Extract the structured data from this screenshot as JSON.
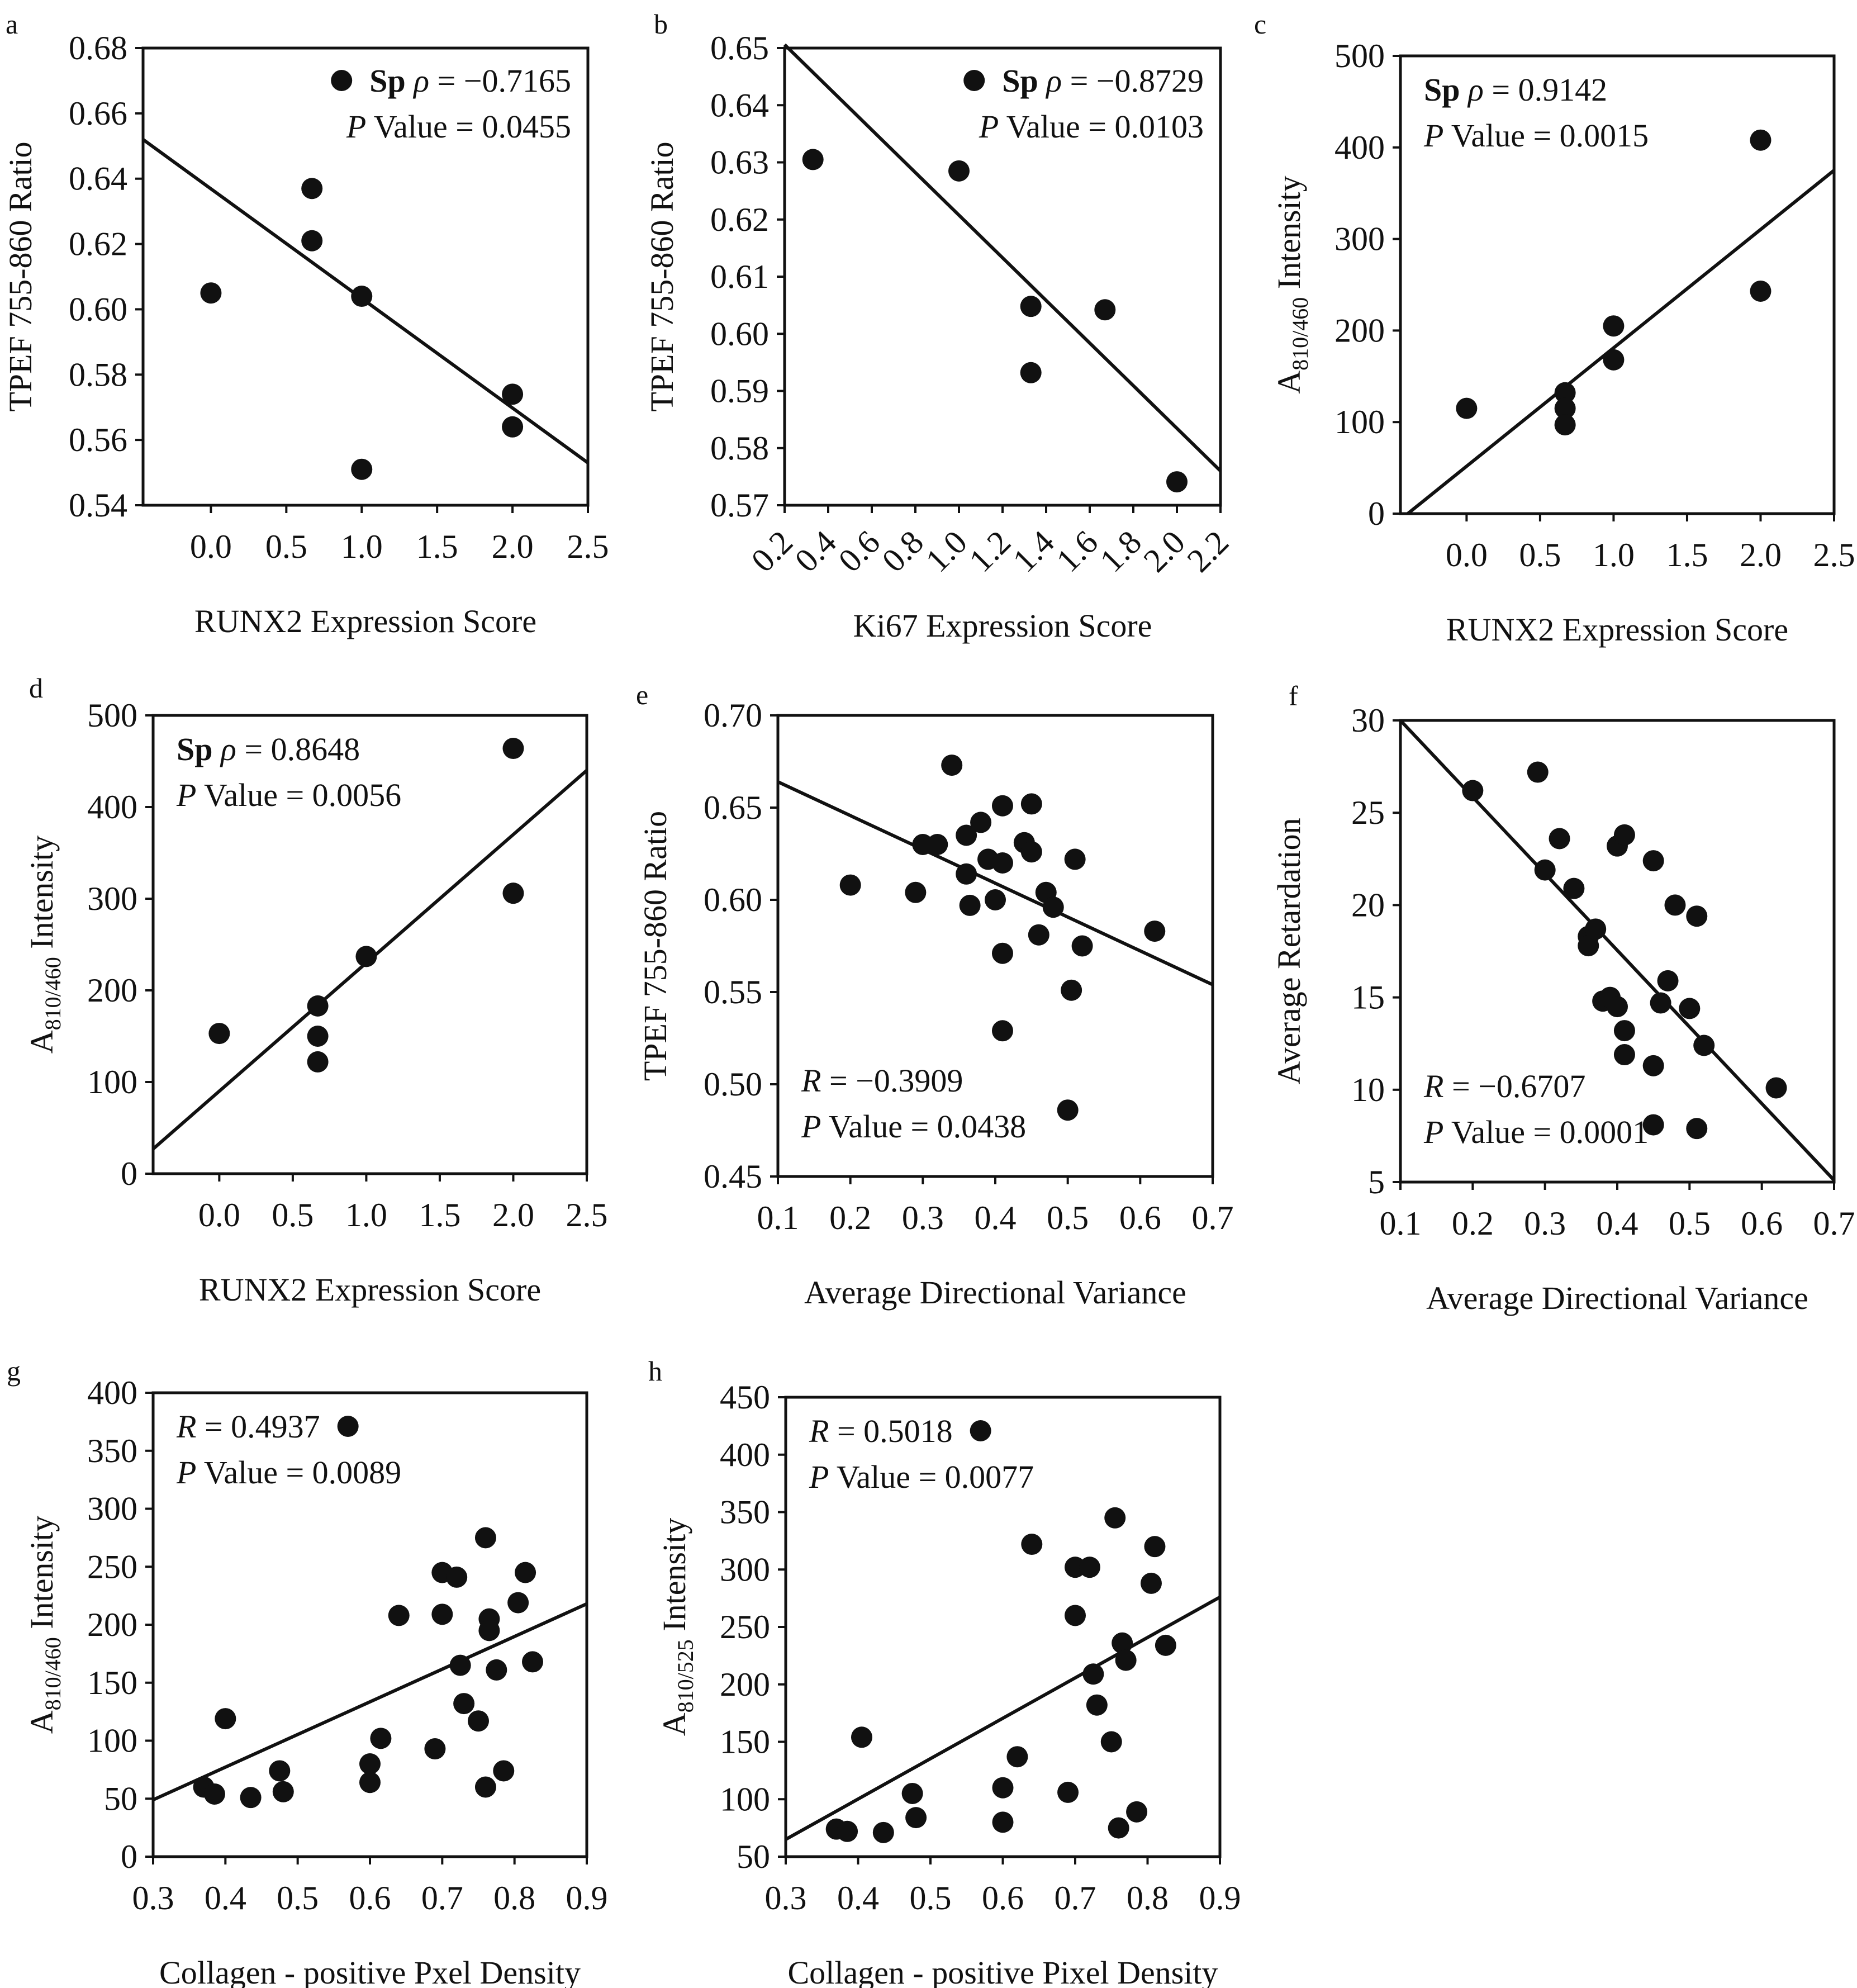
{
  "colors": {
    "ink": "#111111",
    "marker": "#111111",
    "background": "#ffffff"
  },
  "chart_data": [
    {
      "panel": "a",
      "type": "scatter",
      "xlabel": "RUNX2 Expression Score",
      "ylabel": "TPEF 755-860 Ratio",
      "xlim": [
        -0.45,
        2.5
      ],
      "ylim": [
        0.54,
        0.68
      ],
      "xticks": [
        0.0,
        0.5,
        1.0,
        1.5,
        2.0,
        2.5
      ],
      "xtick_labels": [
        "0.0",
        "0.5",
        "1.0",
        "1.5",
        "2.0",
        "2.5"
      ],
      "yticks": [
        0.54,
        0.56,
        0.58,
        0.6,
        0.62,
        0.64,
        0.66,
        0.68
      ],
      "ytick_labels": [
        "0.54",
        "0.56",
        "0.58",
        "0.60",
        "0.62",
        "0.64",
        "0.66",
        "0.68"
      ],
      "x": [
        0.0,
        0.67,
        0.67,
        1.0,
        1.0,
        2.0,
        2.0
      ],
      "y": [
        0.605,
        0.637,
        0.621,
        0.604,
        0.551,
        0.574,
        0.564
      ],
      "fit_line": {
        "x": [
          -0.45,
          2.5
        ],
        "y": [
          0.652,
          0.553
        ]
      },
      "legend": "top-right",
      "annotation": {
        "lines": [
          {
            "segments": [
              {
                "text": "Sp",
                "bold": true
              },
              {
                "text": " ρ",
                "italic": true
              },
              {
                "text": " = −0.7165"
              }
            ],
            "marker": true
          },
          {
            "segments": [
              {
                "text": "P",
                "italic": true
              },
              {
                "text": "  Value = 0.0455"
              }
            ]
          }
        ]
      }
    },
    {
      "panel": "b",
      "type": "scatter",
      "xlabel": "Ki67 Expression Score",
      "ylabel": "TPEF 755-860 Ratio",
      "xlim": [
        0.2,
        2.2
      ],
      "ylim": [
        0.57,
        0.65
      ],
      "xticks": [
        0.2,
        0.4,
        0.6,
        0.8,
        1.0,
        1.2,
        1.4,
        1.6,
        1.8,
        2.0,
        2.2
      ],
      "xtick_labels": [
        "0.2",
        "0.4",
        "0.6",
        "0.8",
        "1.0",
        "1.2",
        "1.4",
        "1.6",
        "1.8",
        "2.0",
        "2.2"
      ],
      "xtick_rotation": -45,
      "yticks": [
        0.57,
        0.58,
        0.59,
        0.6,
        0.61,
        0.62,
        0.63,
        0.64,
        0.65
      ],
      "ytick_labels": [
        "0.57",
        "0.58",
        "0.59",
        "0.60",
        "0.61",
        "0.62",
        "0.63",
        "0.64",
        "0.65"
      ],
      "x": [
        0.33,
        1.0,
        1.33,
        1.33,
        1.67,
        2.0
      ],
      "y": [
        0.6305,
        0.6285,
        0.6048,
        0.5932,
        0.6042,
        0.5741
      ],
      "fit_line": {
        "x": [
          0.2,
          2.2
        ],
        "y": [
          0.6506,
          0.576
        ]
      },
      "legend": "top-right",
      "annotation": {
        "lines": [
          {
            "segments": [
              {
                "text": "Sp",
                "bold": true
              },
              {
                "text": " ρ",
                "italic": true
              },
              {
                "text": " = −0.8729"
              }
            ],
            "marker": true
          },
          {
            "segments": [
              {
                "text": "P",
                "italic": true
              },
              {
                "text": "  Value = 0.0103"
              }
            ]
          }
        ]
      }
    },
    {
      "panel": "c",
      "type": "scatter",
      "xlabel": "RUNX2 Expression Score",
      "ylabel": {
        "base": "A",
        "sub": "810/460",
        "rest": " Intensity"
      },
      "xlim": [
        -0.45,
        2.5
      ],
      "ylim": [
        0,
        500
      ],
      "xticks": [
        0.0,
        0.5,
        1.0,
        1.5,
        2.0,
        2.5
      ],
      "xtick_labels": [
        "0.0",
        "0.5",
        "1.0",
        "1.5",
        "2.0",
        "2.5"
      ],
      "yticks": [
        0,
        100,
        200,
        300,
        400,
        500
      ],
      "ytick_labels": [
        "0",
        "100",
        "200",
        "300",
        "400",
        "500"
      ],
      "x": [
        0.0,
        0.67,
        0.67,
        0.67,
        1.0,
        1.0,
        2.0,
        2.0
      ],
      "y": [
        115,
        132,
        115,
        97,
        205,
        168,
        408,
        243
      ],
      "fit_line": {
        "x": [
          -0.4,
          2.5
        ],
        "y": [
          0,
          375
        ]
      },
      "legend": "top-left",
      "annotation": {
        "lines": [
          {
            "segments": [
              {
                "text": "Sp",
                "bold": true
              },
              {
                "text": " ρ",
                "italic": true
              },
              {
                "text": " = 0.9142"
              }
            ]
          },
          {
            "segments": [
              {
                "text": "P",
                "italic": true
              },
              {
                "text": " Value = 0.0015"
              }
            ]
          }
        ]
      }
    },
    {
      "panel": "d",
      "type": "scatter",
      "xlabel": "RUNX2 Expression Score",
      "ylabel": {
        "base": "A",
        "sub": "810/460",
        "rest": " Intensity"
      },
      "xlim": [
        -0.45,
        2.5
      ],
      "ylim": [
        0,
        500
      ],
      "xticks": [
        0.0,
        0.5,
        1.0,
        1.5,
        2.0,
        2.5
      ],
      "xtick_labels": [
        "0.0",
        "0.5",
        "1.0",
        "1.5",
        "2.0",
        "2.5"
      ],
      "yticks": [
        0,
        100,
        200,
        300,
        400,
        500
      ],
      "ytick_labels": [
        "0",
        "100",
        "200",
        "300",
        "400",
        "500"
      ],
      "x": [
        0.0,
        0.67,
        0.67,
        0.67,
        1.0,
        2.0,
        2.0
      ],
      "y": [
        153,
        183,
        150,
        122,
        237,
        464,
        306
      ],
      "fit_line": {
        "x": [
          -0.45,
          2.5
        ],
        "y": [
          27,
          440
        ]
      },
      "legend": "top-left",
      "annotation": {
        "lines": [
          {
            "segments": [
              {
                "text": "Sp",
                "bold": true
              },
              {
                "text": " ρ",
                "italic": true
              },
              {
                "text": " = 0.8648"
              }
            ]
          },
          {
            "segments": [
              {
                "text": "P",
                "italic": true
              },
              {
                "text": " Value = 0.0056"
              }
            ]
          }
        ]
      }
    },
    {
      "panel": "e",
      "type": "scatter",
      "xlabel": "Average Directional Variance",
      "ylabel": "TPEF 755-860 Ratio",
      "xlim": [
        0.1,
        0.7
      ],
      "ylim": [
        0.45,
        0.7
      ],
      "xticks": [
        0.1,
        0.2,
        0.3,
        0.4,
        0.5,
        0.6,
        0.7
      ],
      "xtick_labels": [
        "0.1",
        "0.2",
        "0.3",
        "0.4",
        "0.5",
        "0.6",
        "0.7"
      ],
      "yticks": [
        0.45,
        0.5,
        0.55,
        0.6,
        0.65,
        0.7
      ],
      "ytick_labels": [
        "0.45",
        "0.50",
        "0.55",
        "0.60",
        "0.65",
        "0.70"
      ],
      "x": [
        0.2,
        0.29,
        0.3,
        0.32,
        0.34,
        0.36,
        0.36,
        0.365,
        0.38,
        0.39,
        0.4,
        0.41,
        0.41,
        0.41,
        0.41,
        0.44,
        0.45,
        0.45,
        0.46,
        0.47,
        0.48,
        0.5,
        0.505,
        0.51,
        0.52,
        0.62
      ],
      "y": [
        0.608,
        0.604,
        0.63,
        0.63,
        0.673,
        0.635,
        0.614,
        0.597,
        0.642,
        0.622,
        0.6,
        0.651,
        0.62,
        0.571,
        0.529,
        0.631,
        0.652,
        0.626,
        0.581,
        0.604,
        0.596,
        0.486,
        0.551,
        0.622,
        0.575,
        0.583
      ],
      "fit_line": {
        "x": [
          0.1,
          0.7
        ],
        "y": [
          0.664,
          0.554
        ]
      },
      "legend": "bottom-left",
      "annotation": {
        "lines": [
          {
            "segments": [
              {
                "text": "R",
                "italic": true
              },
              {
                "text": " = −0.3909"
              }
            ]
          },
          {
            "segments": [
              {
                "text": "P",
                "italic": true
              },
              {
                "text": " Value = 0.0438"
              }
            ]
          }
        ]
      }
    },
    {
      "panel": "f",
      "type": "scatter",
      "xlabel": "Average Directional Variance",
      "ylabel": "Average Retardation",
      "xlim": [
        0.1,
        0.7
      ],
      "ylim": [
        5,
        30
      ],
      "xticks": [
        0.1,
        0.2,
        0.3,
        0.4,
        0.5,
        0.6,
        0.7
      ],
      "xtick_labels": [
        "0.1",
        "0.2",
        "0.3",
        "0.4",
        "0.5",
        "0.6",
        "0.7"
      ],
      "yticks": [
        5,
        10,
        15,
        20,
        25,
        30
      ],
      "ytick_labels": [
        "5",
        "10",
        "15",
        "20",
        "25",
        "30"
      ],
      "x": [
        0.2,
        0.29,
        0.3,
        0.32,
        0.34,
        0.36,
        0.36,
        0.37,
        0.38,
        0.39,
        0.4,
        0.4,
        0.41,
        0.41,
        0.41,
        0.45,
        0.45,
        0.45,
        0.46,
        0.47,
        0.48,
        0.5,
        0.51,
        0.51,
        0.52,
        0.62
      ],
      "y": [
        26.2,
        27.2,
        21.9,
        23.6,
        20.9,
        18.3,
        17.8,
        18.7,
        14.8,
        15.0,
        14.5,
        23.2,
        23.8,
        13.2,
        11.9,
        22.4,
        11.3,
        8.1,
        14.7,
        15.9,
        20.0,
        14.4,
        19.4,
        7.9,
        12.4,
        10.1
      ],
      "fit_line": {
        "x": [
          0.1,
          0.7
        ],
        "y": [
          30.0,
          5.1
        ]
      },
      "legend": "bottom-left",
      "annotation": {
        "lines": [
          {
            "segments": [
              {
                "text": "R",
                "italic": true
              },
              {
                "text": " = −0.6707"
              }
            ]
          },
          {
            "segments": [
              {
                "text": "P",
                "italic": true
              },
              {
                "text": " Value = 0.0001"
              }
            ]
          }
        ]
      }
    },
    {
      "panel": "g",
      "type": "scatter",
      "xlabel": "Collagen - positive Pxel Density",
      "ylabel": {
        "base": "A",
        "sub": "810/460",
        "rest": " Intensity"
      },
      "xlim": [
        0.3,
        0.9
      ],
      "ylim": [
        0,
        400
      ],
      "xticks": [
        0.3,
        0.4,
        0.5,
        0.6,
        0.7,
        0.8,
        0.9
      ],
      "xtick_labels": [
        "0.3",
        "0.4",
        "0.5",
        "0.6",
        "0.7",
        "0.8",
        "0.9"
      ],
      "yticks": [
        0,
        50,
        100,
        150,
        200,
        250,
        300,
        350,
        400
      ],
      "ytick_labels": [
        "0",
        "50",
        "100",
        "150",
        "200",
        "250",
        "300",
        "350",
        "400"
      ],
      "x": [
        0.37,
        0.385,
        0.4,
        0.435,
        0.475,
        0.48,
        0.6,
        0.6,
        0.615,
        0.64,
        0.69,
        0.7,
        0.7,
        0.72,
        0.725,
        0.73,
        0.75,
        0.76,
        0.76,
        0.765,
        0.765,
        0.775,
        0.785,
        0.805,
        0.815,
        0.825
      ],
      "y": [
        60,
        54,
        119,
        51,
        74,
        56,
        80,
        64,
        102,
        208,
        93,
        245,
        209,
        241,
        165,
        132,
        117,
        60,
        275,
        205,
        195,
        161,
        74,
        219,
        245,
        168
      ],
      "fit_line": {
        "x": [
          0.3,
          0.9
        ],
        "y": [
          49,
          218
        ]
      },
      "legend": "top-left",
      "annotation": {
        "lines": [
          {
            "segments": [
              {
                "text": "R",
                "italic": true
              },
              {
                "text": " = 0.4937"
              }
            ],
            "marker_right": true
          },
          {
            "segments": [
              {
                "text": "P",
                "italic": true
              },
              {
                "text": " Value = 0.0089"
              }
            ]
          }
        ]
      }
    },
    {
      "panel": "h",
      "type": "scatter",
      "xlabel": "Collagen - positive Pixel Density",
      "ylabel": {
        "base": "A",
        "sub": "810/525",
        "rest": " Intensity"
      },
      "xlim": [
        0.3,
        0.9
      ],
      "ylim": [
        50,
        450
      ],
      "xticks": [
        0.3,
        0.4,
        0.5,
        0.6,
        0.7,
        0.8,
        0.9
      ],
      "xtick_labels": [
        "0.3",
        "0.4",
        "0.5",
        "0.6",
        "0.7",
        "0.8",
        "0.9"
      ],
      "yticks": [
        50,
        100,
        150,
        200,
        250,
        300,
        350,
        400,
        450
      ],
      "ytick_labels": [
        "50",
        "100",
        "150",
        "200",
        "250",
        "300",
        "350",
        "400",
        "450"
      ],
      "x": [
        0.37,
        0.385,
        0.405,
        0.435,
        0.475,
        0.48,
        0.6,
        0.6,
        0.62,
        0.64,
        0.69,
        0.7,
        0.7,
        0.72,
        0.725,
        0.73,
        0.75,
        0.755,
        0.76,
        0.765,
        0.77,
        0.785,
        0.805,
        0.81,
        0.825
      ],
      "y": [
        74,
        72,
        154,
        71,
        105,
        84,
        80,
        110,
        137,
        322,
        106,
        302,
        260,
        302,
        209,
        182,
        150,
        345,
        75,
        236,
        221,
        89,
        288,
        320,
        234
      ],
      "fit_line": {
        "x": [
          0.3,
          0.9
        ],
        "y": [
          65,
          276
        ]
      },
      "legend": "top-left",
      "annotation": {
        "lines": [
          {
            "segments": [
              {
                "text": "R",
                "italic": true
              },
              {
                "text": " = 0.5018"
              }
            ],
            "marker_right": true
          },
          {
            "segments": [
              {
                "text": "P",
                "italic": true
              },
              {
                "text": " Value = 0.0077"
              }
            ]
          }
        ]
      }
    }
  ]
}
